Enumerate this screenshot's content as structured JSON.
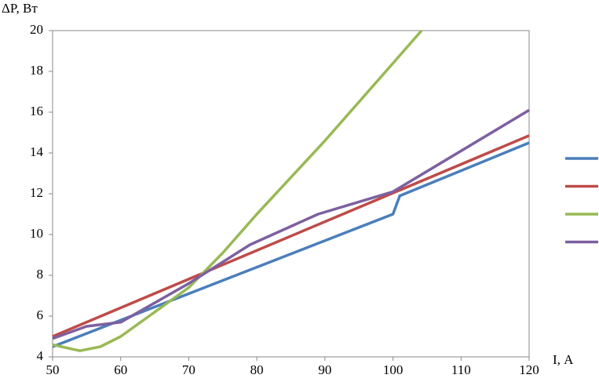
{
  "chart_data": {
    "type": "line",
    "y_label": "ΔP, Вт",
    "x_label": "I, А",
    "xlim": [
      50,
      120
    ],
    "xticks": [
      50,
      60,
      70,
      80,
      90,
      100,
      110,
      120
    ],
    "ylim": [
      4,
      20
    ],
    "yticks": [
      4,
      6,
      8,
      10,
      12,
      14,
      16,
      18,
      20
    ],
    "series": [
      {
        "color": "#4a7ebb",
        "x": [
          50,
          100,
          101,
          120
        ],
        "values": [
          4.5,
          11.0,
          11.9,
          14.5
        ]
      },
      {
        "color": "#be4b48",
        "x": [
          50,
          120
        ],
        "values": [
          5.0,
          14.85
        ]
      },
      {
        "color": "#98b954",
        "x": [
          50,
          54,
          57,
          60,
          65,
          70,
          75,
          80,
          90,
          100,
          104.2
        ],
        "values": [
          4.6,
          4.3,
          4.5,
          5.0,
          6.2,
          7.4,
          9.1,
          11.0,
          14.6,
          18.4,
          20
        ]
      },
      {
        "color": "#7d60a0",
        "x": [
          50,
          55,
          60,
          70,
          79,
          89,
          100,
          120
        ],
        "values": [
          4.9,
          5.5,
          5.7,
          7.6,
          9.5,
          11.0,
          12.1,
          16.1
        ]
      }
    ]
  }
}
